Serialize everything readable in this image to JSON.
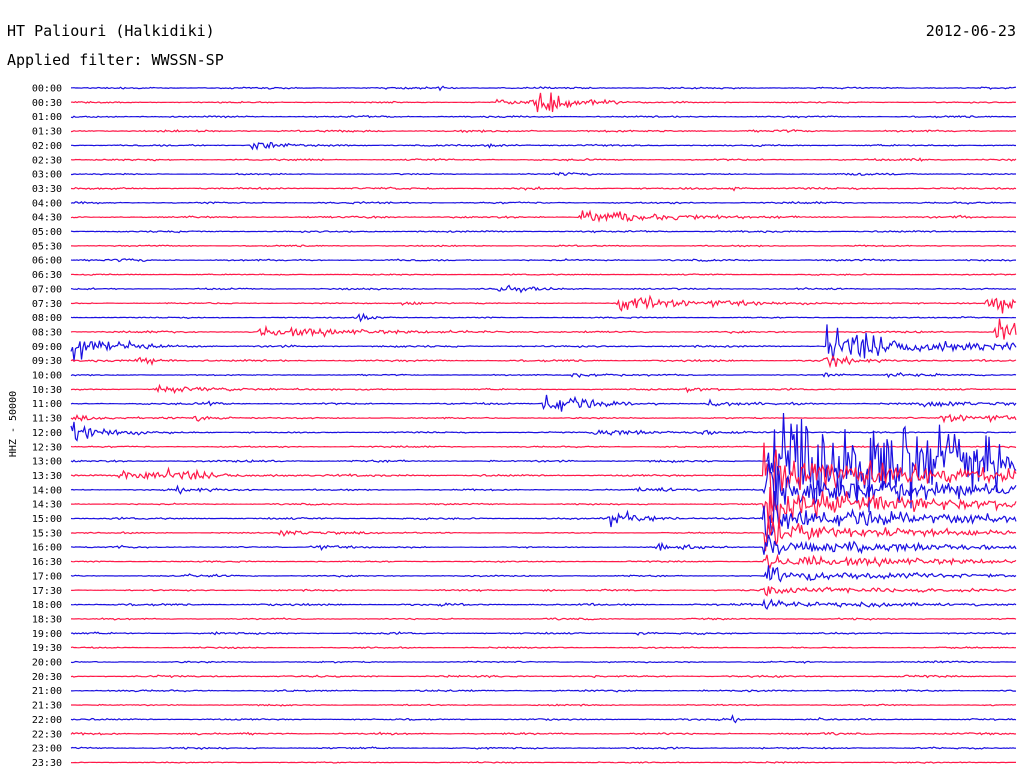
{
  "header": {
    "station": "HT Paliouri (Halkidiki)",
    "date": "2012-06-23",
    "filter": "Applied filter: WWSSN-SP"
  },
  "chart_data": {
    "type": "line",
    "channel_label": "HHZ - 50000",
    "row_labels": [
      "00:00",
      "00:30",
      "01:00",
      "01:30",
      "02:00",
      "02:30",
      "03:00",
      "03:30",
      "04:00",
      "04:30",
      "05:00",
      "05:30",
      "06:00",
      "06:30",
      "07:00",
      "07:30",
      "08:00",
      "08:30",
      "09:00",
      "09:30",
      "10:00",
      "10:30",
      "11:00",
      "11:30",
      "12:00",
      "12:30",
      "13:00",
      "13:30",
      "14:00",
      "14:30",
      "15:00",
      "15:30",
      "16:00",
      "16:30",
      "17:00",
      "17:30",
      "18:00",
      "18:30",
      "19:00",
      "19:30",
      "20:00",
      "20:30",
      "21:00",
      "21:30",
      "22:00",
      "22:30",
      "23:00",
      "23:30"
    ],
    "colors": [
      "#1a0fe0",
      "#ff1848"
    ],
    "minutes_per_row": 30,
    "events": [
      {
        "row": 0,
        "t": 0.39,
        "amp": 0.6,
        "dur": 0.01
      },
      {
        "row": 1,
        "t": 0.45,
        "amp": 0.5,
        "dur": 0.07
      },
      {
        "row": 1,
        "t": 0.49,
        "amp": 2.2,
        "dur": 0.04
      },
      {
        "row": 4,
        "t": 0.19,
        "amp": 0.8,
        "dur": 0.04
      },
      {
        "row": 4,
        "t": 0.44,
        "amp": 0.4,
        "dur": 0.02
      },
      {
        "row": 5,
        "t": 0.88,
        "amp": 0.4,
        "dur": 0.03
      },
      {
        "row": 6,
        "t": 0.51,
        "amp": 0.3,
        "dur": 0.05
      },
      {
        "row": 6,
        "t": 0.82,
        "amp": 0.3,
        "dur": 0.05
      },
      {
        "row": 7,
        "t": 0.7,
        "amp": 0.5,
        "dur": 0.01
      },
      {
        "row": 9,
        "t": 0.54,
        "amp": 1.4,
        "dur": 0.08
      },
      {
        "row": 9,
        "t": 0.32,
        "amp": 0.3,
        "dur": 0.02
      },
      {
        "row": 9,
        "t": 0.93,
        "amp": 0.4,
        "dur": 0.02
      },
      {
        "row": 12,
        "t": 0.05,
        "amp": 0.4,
        "dur": 0.02
      },
      {
        "row": 14,
        "t": 0.45,
        "amp": 0.7,
        "dur": 0.04
      },
      {
        "row": 15,
        "t": 0.35,
        "amp": 0.5,
        "dur": 0.03
      },
      {
        "row": 15,
        "t": 0.58,
        "amp": 1.3,
        "dur": 0.1
      },
      {
        "row": 15,
        "t": 0.97,
        "amp": 2.4,
        "dur": 0.03
      },
      {
        "row": 16,
        "t": 0.3,
        "amp": 0.8,
        "dur": 0.02
      },
      {
        "row": 16,
        "t": 0.94,
        "amp": 0.3,
        "dur": 0.02
      },
      {
        "row": 17,
        "t": 0.2,
        "amp": 0.9,
        "dur": 0.11
      },
      {
        "row": 17,
        "t": 0.98,
        "amp": 2.8,
        "dur": 0.03
      },
      {
        "row": 18,
        "t": 0.0,
        "amp": 2.4,
        "dur": 0.05
      },
      {
        "row": 18,
        "t": 0.95,
        "amp": 1.0,
        "dur": 0.01
      },
      {
        "row": 19,
        "t": 0.07,
        "amp": 0.7,
        "dur": 0.03
      },
      {
        "row": 20,
        "t": 0.53,
        "amp": 0.4,
        "dur": 0.05
      },
      {
        "row": 20,
        "t": 0.86,
        "amp": 0.4,
        "dur": 0.06
      },
      {
        "row": 21,
        "t": 0.09,
        "amp": 0.6,
        "dur": 0.09
      },
      {
        "row": 21,
        "t": 0.65,
        "amp": 0.5,
        "dur": 0.03
      },
      {
        "row": 22,
        "t": 0.5,
        "amp": 2.2,
        "dur": 0.04
      },
      {
        "row": 22,
        "t": 0.14,
        "amp": 0.4,
        "dur": 0.02
      },
      {
        "row": 22,
        "t": 0.67,
        "amp": 0.5,
        "dur": 0.05
      },
      {
        "row": 22,
        "t": 0.9,
        "amp": 0.6,
        "dur": 0.1
      },
      {
        "row": 23,
        "t": 0.0,
        "amp": 0.4,
        "dur": 0.06
      },
      {
        "row": 23,
        "t": 0.13,
        "amp": 0.5,
        "dur": 0.04
      },
      {
        "row": 23,
        "t": 0.92,
        "amp": 0.9,
        "dur": 0.08
      },
      {
        "row": 24,
        "t": 0.0,
        "amp": 1.5,
        "dur": 0.05
      },
      {
        "row": 24,
        "t": 0.55,
        "amp": 0.6,
        "dur": 0.07
      },
      {
        "row": 24,
        "t": 0.66,
        "amp": 0.5,
        "dur": 0.05
      },
      {
        "row": 27,
        "t": 0.05,
        "amp": 0.6,
        "dur": 0.13
      },
      {
        "row": 27,
        "t": 0.1,
        "amp": 1.2,
        "dur": 0.05
      },
      {
        "row": 28,
        "t": 0.11,
        "amp": 0.5,
        "dur": 0.05
      },
      {
        "row": 28,
        "t": 0.6,
        "amp": 0.5,
        "dur": 0.06
      },
      {
        "row": 30,
        "t": 0.57,
        "amp": 1.6,
        "dur": 0.03
      },
      {
        "row": 31,
        "t": 0.22,
        "amp": 0.6,
        "dur": 0.06
      },
      {
        "row": 32,
        "t": 0.04,
        "amp": 0.4,
        "dur": 0.03
      },
      {
        "row": 32,
        "t": 0.25,
        "amp": 0.5,
        "dur": 0.04
      },
      {
        "row": 32,
        "t": 0.62,
        "amp": 0.8,
        "dur": 0.04
      },
      {
        "row": 34,
        "t": 0.12,
        "amp": 0.3,
        "dur": 0.04
      },
      {
        "row": 35,
        "t": 0.5,
        "amp": 0.4,
        "dur": 0.01
      },
      {
        "row": 38,
        "t": 0.15,
        "amp": 0.4,
        "dur": 0.01
      },
      {
        "row": 38,
        "t": 0.6,
        "amp": 0.4,
        "dur": 0.01
      },
      {
        "row": 44,
        "t": 0.7,
        "amp": 0.5,
        "dur": 0.01
      },
      {
        "row": 44,
        "t": 0.79,
        "amp": 0.3,
        "dur": 0.01
      }
    ],
    "large_events": [
      {
        "start_row": 26,
        "t": 0.738,
        "peak_amp": 9,
        "decay_rows": 10,
        "tail_dur": 0.2
      },
      {
        "start_row": 18,
        "t": 0.8,
        "peak_amp": 3,
        "decay_rows": 2,
        "tail_dur": 0.05
      }
    ]
  }
}
